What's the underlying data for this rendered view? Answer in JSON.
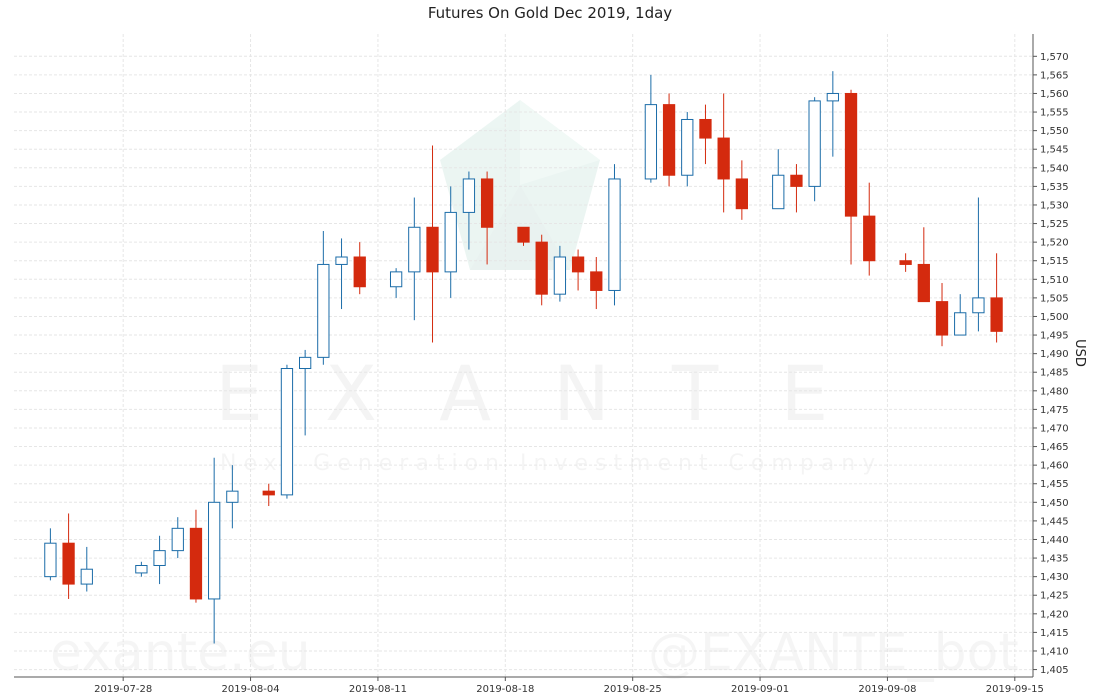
{
  "chart_data": {
    "type": "candlestick",
    "title": "Futures On Gold Dec 2019, 1day",
    "ylabel": "USD",
    "xlabel": "",
    "ylim": [
      1403,
      1576
    ],
    "xlim": [
      "2019-07-22",
      "2019-09-16"
    ],
    "grid": true,
    "y_ticks": [
      "1,405",
      "1,410",
      "1,415",
      "1,420",
      "1,425",
      "1,430",
      "1,435",
      "1,440",
      "1,445",
      "1,450",
      "1,455",
      "1,460",
      "1,465",
      "1,470",
      "1,475",
      "1,480",
      "1,485",
      "1,490",
      "1,495",
      "1,500",
      "1,505",
      "1,510",
      "1,515",
      "1,520",
      "1,525",
      "1,530",
      "1,535",
      "1,540",
      "1,545",
      "1,550",
      "1,555",
      "1,560",
      "1,565",
      "1,570"
    ],
    "x_ticks": [
      "2019-07-28",
      "2019-08-04",
      "2019-08-11",
      "2019-08-18",
      "2019-08-25",
      "2019-09-01",
      "2019-09-08",
      "2019-09-15"
    ],
    "up_color": "#1b6ca8",
    "down_color": "#d42a0e",
    "candles": [
      {
        "date": "2019-07-24",
        "open": 1430,
        "high": 1443,
        "low": 1429,
        "close": 1439
      },
      {
        "date": "2019-07-25",
        "open": 1439,
        "high": 1447,
        "low": 1424,
        "close": 1428
      },
      {
        "date": "2019-07-26",
        "open": 1428,
        "high": 1438,
        "low": 1426,
        "close": 1432
      },
      {
        "date": "2019-07-29",
        "open": 1431,
        "high": 1434,
        "low": 1430,
        "close": 1433
      },
      {
        "date": "2019-07-30",
        "open": 1433,
        "high": 1441,
        "low": 1428,
        "close": 1437
      },
      {
        "date": "2019-07-31",
        "open": 1437,
        "high": 1446,
        "low": 1435,
        "close": 1443
      },
      {
        "date": "2019-08-01",
        "open": 1443,
        "high": 1448,
        "low": 1423,
        "close": 1424
      },
      {
        "date": "2019-08-02",
        "open": 1424,
        "high": 1462,
        "low": 1412,
        "close": 1450
      },
      {
        "date": "2019-08-03",
        "open": 1450,
        "high": 1460,
        "low": 1443,
        "close": 1453
      },
      {
        "date": "2019-08-05",
        "open": 1453,
        "high": 1455,
        "low": 1449,
        "close": 1452
      },
      {
        "date": "2019-08-06",
        "open": 1452,
        "high": 1487,
        "low": 1451,
        "close": 1486
      },
      {
        "date": "2019-08-07",
        "open": 1486,
        "high": 1491,
        "low": 1468,
        "close": 1489
      },
      {
        "date": "2019-08-08",
        "open": 1489,
        "high": 1523,
        "low": 1487,
        "close": 1514
      },
      {
        "date": "2019-08-09",
        "open": 1514,
        "high": 1521,
        "low": 1502,
        "close": 1516
      },
      {
        "date": "2019-08-10",
        "open": 1516,
        "high": 1520,
        "low": 1506,
        "close": 1508
      },
      {
        "date": "2019-08-12",
        "open": 1508,
        "high": 1513,
        "low": 1505,
        "close": 1512
      },
      {
        "date": "2019-08-13",
        "open": 1512,
        "high": 1532,
        "low": 1499,
        "close": 1524
      },
      {
        "date": "2019-08-14",
        "open": 1524,
        "high": 1546,
        "low": 1493,
        "close": 1512
      },
      {
        "date": "2019-08-15",
        "open": 1512,
        "high": 1535,
        "low": 1505,
        "close": 1528
      },
      {
        "date": "2019-08-16",
        "open": 1528,
        "high": 1539,
        "low": 1518,
        "close": 1537
      },
      {
        "date": "2019-08-17",
        "open": 1537,
        "high": 1539,
        "low": 1514,
        "close": 1524
      },
      {
        "date": "2019-08-19",
        "open": 1524,
        "high": 1524,
        "low": 1519,
        "close": 1520
      },
      {
        "date": "2019-08-20",
        "open": 1520,
        "high": 1522,
        "low": 1503,
        "close": 1506
      },
      {
        "date": "2019-08-21",
        "open": 1506,
        "high": 1519,
        "low": 1504,
        "close": 1516
      },
      {
        "date": "2019-08-22",
        "open": 1516,
        "high": 1518,
        "low": 1507,
        "close": 1512
      },
      {
        "date": "2019-08-23",
        "open": 1512,
        "high": 1516,
        "low": 1502,
        "close": 1507
      },
      {
        "date": "2019-08-24",
        "open": 1507,
        "high": 1541,
        "low": 1503,
        "close": 1537
      },
      {
        "date": "2019-08-26",
        "open": 1537,
        "high": 1565,
        "low": 1536,
        "close": 1557
      },
      {
        "date": "2019-08-27",
        "open": 1557,
        "high": 1560,
        "low": 1535,
        "close": 1538
      },
      {
        "date": "2019-08-28",
        "open": 1538,
        "high": 1555,
        "low": 1535,
        "close": 1553
      },
      {
        "date": "2019-08-29",
        "open": 1553,
        "high": 1557,
        "low": 1541,
        "close": 1548
      },
      {
        "date": "2019-08-30",
        "open": 1548,
        "high": 1560,
        "low": 1528,
        "close": 1537
      },
      {
        "date": "2019-08-31",
        "open": 1537,
        "high": 1542,
        "low": 1526,
        "close": 1529
      },
      {
        "date": "2019-09-02",
        "open": 1529,
        "high": 1545,
        "low": 1529,
        "close": 1538
      },
      {
        "date": "2019-09-03",
        "open": 1538,
        "high": 1541,
        "low": 1528,
        "close": 1535
      },
      {
        "date": "2019-09-04",
        "open": 1535,
        "high": 1559,
        "low": 1531,
        "close": 1558
      },
      {
        "date": "2019-09-05",
        "open": 1558,
        "high": 1566,
        "low": 1543,
        "close": 1560
      },
      {
        "date": "2019-09-06",
        "open": 1560,
        "high": 1561,
        "low": 1514,
        "close": 1527
      },
      {
        "date": "2019-09-07",
        "open": 1527,
        "high": 1536,
        "low": 1511,
        "close": 1515
      },
      {
        "date": "2019-09-09",
        "open": 1515,
        "high": 1517,
        "low": 1512,
        "close": 1514
      },
      {
        "date": "2019-09-10",
        "open": 1514,
        "high": 1524,
        "low": 1504,
        "close": 1504
      },
      {
        "date": "2019-09-11",
        "open": 1504,
        "high": 1509,
        "low": 1492,
        "close": 1495
      },
      {
        "date": "2019-09-12",
        "open": 1495,
        "high": 1506,
        "low": 1495,
        "close": 1501
      },
      {
        "date": "2019-09-13",
        "open": 1501,
        "high": 1532,
        "low": 1496,
        "close": 1505
      },
      {
        "date": "2019-09-14",
        "open": 1505,
        "high": 1517,
        "low": 1493,
        "close": 1496
      }
    ]
  },
  "watermark": {
    "brand": "EXANTE",
    "tagline": "Next Generation Investment Company",
    "site": "exante.eu",
    "bot": "@EXANTE_bot"
  }
}
